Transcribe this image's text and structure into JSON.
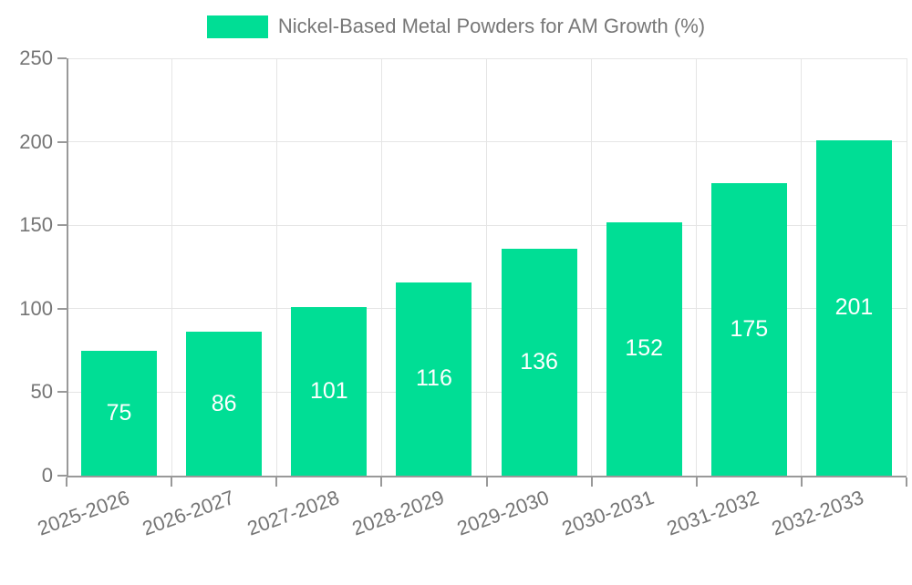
{
  "chart_data": {
    "type": "bar",
    "title": "Nickel-Based Metal Powders for AM Growth (%)",
    "legend": {
      "position": "top",
      "entries": [
        "Nickel-Based Metal Powders for AM Growth (%)"
      ]
    },
    "categories": [
      "2025-2026",
      "2026-2027",
      "2027-2028",
      "2028-2029",
      "2029-2030",
      "2030-2031",
      "2031-2032",
      "2032-2033"
    ],
    "values": [
      75,
      86,
      101,
      116,
      136,
      152,
      175,
      201
    ],
    "value_labels_shown_inside_bars": true,
    "xlabel": "",
    "ylabel": "",
    "ylim": [
      0,
      250
    ],
    "yticks": [
      0,
      50,
      100,
      150,
      200,
      250
    ],
    "grid": true,
    "colors": {
      "bar": "#00DE95",
      "value_label": "#FFFFFF",
      "axis_line": "#999999",
      "gridline": "#E5E5E5",
      "tick_label": "#757575",
      "legend_text": "#777777",
      "background": "#FFFFFF"
    }
  }
}
